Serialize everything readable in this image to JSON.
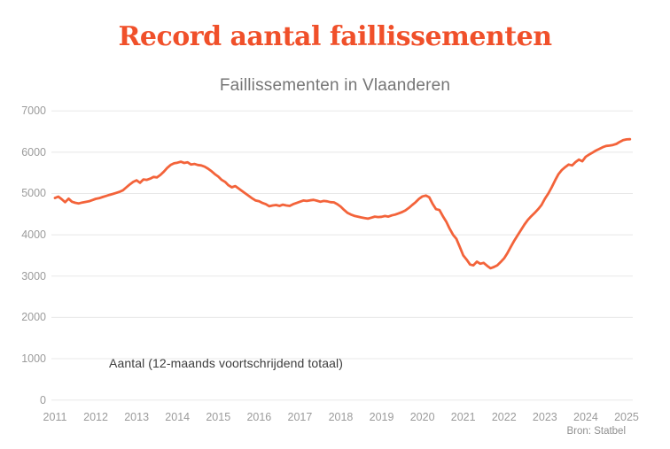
{
  "header": {
    "title": "Record aantal faillissementen",
    "subtitle": "Faillissementen in Vlaanderen"
  },
  "annotation": "Aantal (12-maands voortschrijdend totaal)",
  "source": "Bron: Statbel",
  "colors": {
    "accent_title": "#f0502a",
    "line": "#f3633a",
    "grid": "#e8e8e8",
    "axis_text": "#9b9b9b",
    "annotation_text": "#3d3d3d",
    "subtitle_text": "#767676",
    "source_text": "#8f8f8f",
    "background": "#ffffff"
  },
  "chart_data": {
    "type": "line",
    "title": "Faillissementen in Vlaanderen",
    "series_label": "Aantal (12-maands voortschrijdend totaal)",
    "xlabel": "",
    "ylabel": "",
    "x_start_year": 2011,
    "x_interval": "monthly",
    "x_end_year": 2025.08,
    "xticks": [
      2011,
      2012,
      2013,
      2014,
      2015,
      2016,
      2017,
      2018,
      2019,
      2020,
      2021,
      2022,
      2023,
      2024,
      2025
    ],
    "yticks": [
      0,
      1000,
      2000,
      3000,
      4000,
      5000,
      6000,
      7000
    ],
    "ylim": [
      0,
      7000
    ],
    "grid": "horizontal",
    "legend_position": "none",
    "values": [
      4890,
      4925,
      4860,
      4790,
      4875,
      4800,
      4775,
      4760,
      4780,
      4795,
      4810,
      4840,
      4870,
      4885,
      4915,
      4940,
      4965,
      4990,
      5015,
      5040,
      5080,
      5150,
      5220,
      5280,
      5320,
      5260,
      5340,
      5330,
      5360,
      5400,
      5390,
      5450,
      5530,
      5620,
      5690,
      5730,
      5745,
      5770,
      5740,
      5755,
      5700,
      5715,
      5690,
      5680,
      5650,
      5600,
      5540,
      5470,
      5410,
      5330,
      5280,
      5200,
      5150,
      5180,
      5120,
      5060,
      5000,
      4940,
      4880,
      4830,
      4810,
      4770,
      4740,
      4690,
      4710,
      4720,
      4700,
      4730,
      4710,
      4700,
      4740,
      4770,
      4800,
      4830,
      4820,
      4835,
      4845,
      4825,
      4800,
      4820,
      4810,
      4790,
      4785,
      4740,
      4680,
      4600,
      4530,
      4490,
      4460,
      4440,
      4420,
      4405,
      4390,
      4415,
      4440,
      4430,
      4435,
      4455,
      4440,
      4470,
      4490,
      4520,
      4550,
      4590,
      4650,
      4720,
      4790,
      4870,
      4930,
      4950,
      4910,
      4750,
      4620,
      4600,
      4450,
      4320,
      4150,
      4000,
      3900,
      3700,
      3500,
      3400,
      3280,
      3260,
      3350,
      3300,
      3320,
      3250,
      3190,
      3220,
      3260,
      3340,
      3430,
      3560,
      3710,
      3860,
      3990,
      4120,
      4250,
      4360,
      4450,
      4530,
      4620,
      4720,
      4870,
      5000,
      5150,
      5320,
      5470,
      5570,
      5640,
      5700,
      5680,
      5760,
      5820,
      5780,
      5890,
      5940,
      5990,
      6040,
      6080,
      6120,
      6150,
      6160,
      6175,
      6200,
      6250,
      6290,
      6310,
      6315
    ]
  }
}
